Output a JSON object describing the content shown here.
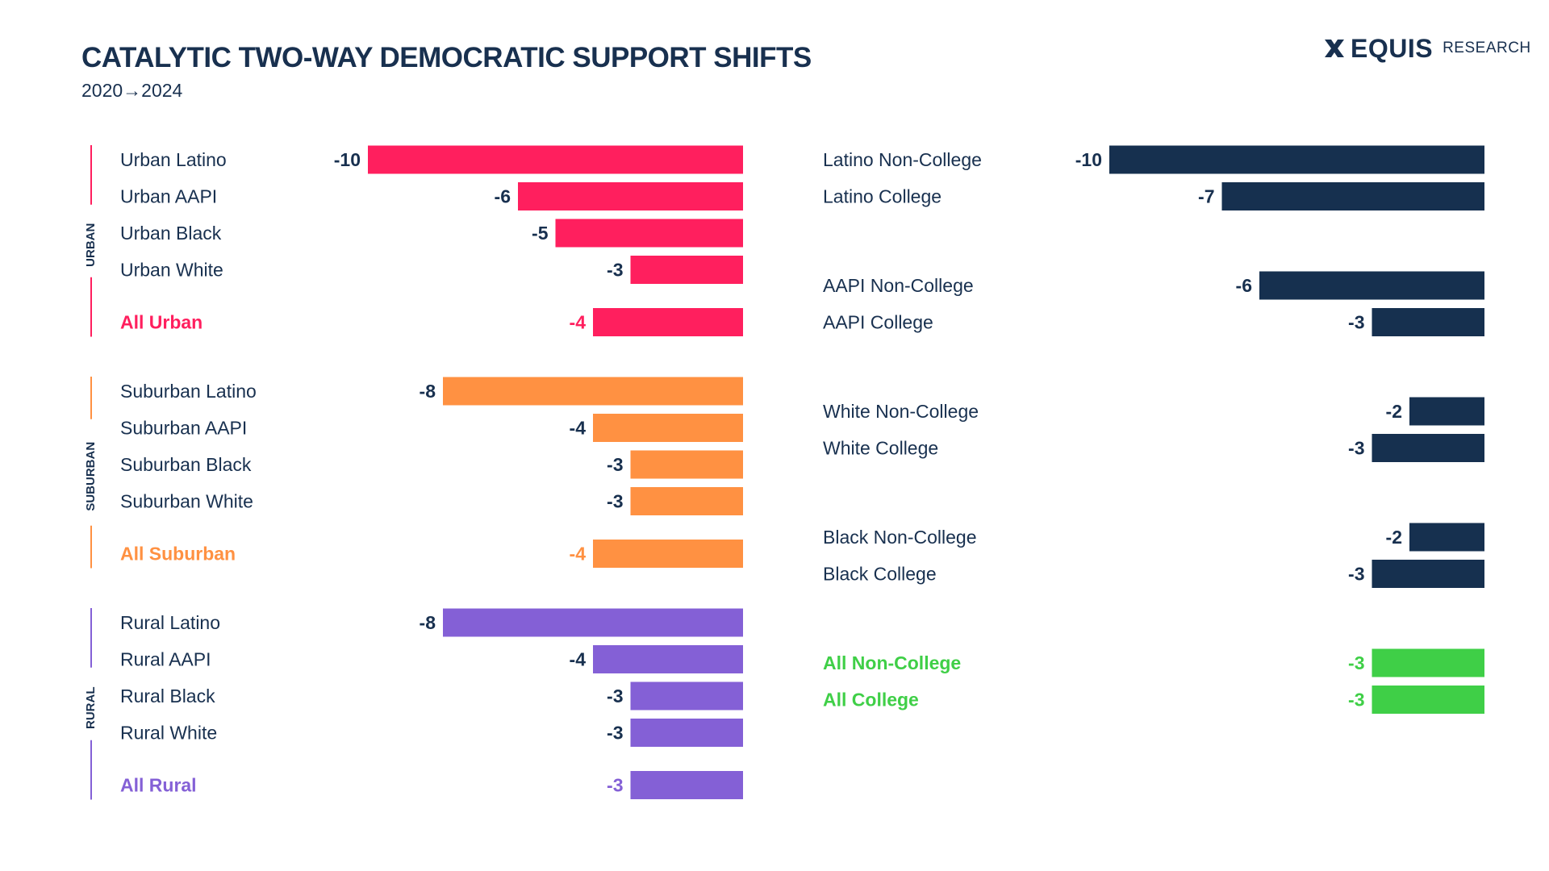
{
  "header": {
    "title": "CATALYTIC TWO-WAY DEMOCRATIC SUPPORT SHIFTS",
    "subtitle": "2020→2024"
  },
  "logo": {
    "brand": "EQUIS",
    "sub": "RESEARCH",
    "icon": "x-mark-icon"
  },
  "colors": {
    "text": "#18304f",
    "urban": "#ff1f5e",
    "suburban": "#ff9142",
    "rural": "#8460d6",
    "education": "#16304f",
    "all_education": "#3fcf47"
  },
  "chart_data": [
    {
      "type": "bar",
      "orientation": "horizontal",
      "groups": [
        {
          "name": "URBAN",
          "color": "urban",
          "rows": [
            {
              "label": "Urban Latino",
              "value": -10
            },
            {
              "label": "Urban AAPI",
              "value": -6
            },
            {
              "label": "Urban Black",
              "value": -5
            },
            {
              "label": "Urban White",
              "value": -3
            },
            {
              "label": "All Urban",
              "value": -4,
              "total": true
            }
          ]
        },
        {
          "name": "SUBURBAN",
          "color": "suburban",
          "rows": [
            {
              "label": "Suburban Latino",
              "value": -8
            },
            {
              "label": "Suburban AAPI",
              "value": -4
            },
            {
              "label": "Suburban Black",
              "value": -3
            },
            {
              "label": "Suburban White",
              "value": -3
            },
            {
              "label": "All Suburban",
              "value": -4,
              "total": true
            }
          ]
        },
        {
          "name": "RURAL",
          "color": "rural",
          "rows": [
            {
              "label": "Rural Latino",
              "value": -8
            },
            {
              "label": "Rural AAPI",
              "value": -4
            },
            {
              "label": "Rural Black",
              "value": -3
            },
            {
              "label": "Rural White",
              "value": -3
            },
            {
              "label": "All Rural",
              "value": -3,
              "total": true
            }
          ]
        }
      ]
    },
    {
      "type": "bar",
      "orientation": "horizontal",
      "groups": [
        {
          "name": "",
          "color": "education",
          "rows": [
            {
              "label": "Latino Non-College",
              "value": -10
            },
            {
              "label": "Latino College",
              "value": -7
            }
          ]
        },
        {
          "name": "",
          "color": "education",
          "rows": [
            {
              "label": "AAPI Non-College",
              "value": -6
            },
            {
              "label": "AAPI College",
              "value": -3
            }
          ]
        },
        {
          "name": "",
          "color": "education",
          "rows": [
            {
              "label": "White Non-College",
              "value": -2
            },
            {
              "label": "White College",
              "value": -3
            }
          ]
        },
        {
          "name": "",
          "color": "education",
          "rows": [
            {
              "label": "Black Non-College",
              "value": -2
            },
            {
              "label": "Black College",
              "value": -3
            }
          ]
        },
        {
          "name": "",
          "color": "all_education",
          "rows": [
            {
              "label": "All Non-College",
              "value": -3,
              "total": true
            },
            {
              "label": "All College",
              "value": -3,
              "total": true
            }
          ]
        }
      ]
    }
  ]
}
